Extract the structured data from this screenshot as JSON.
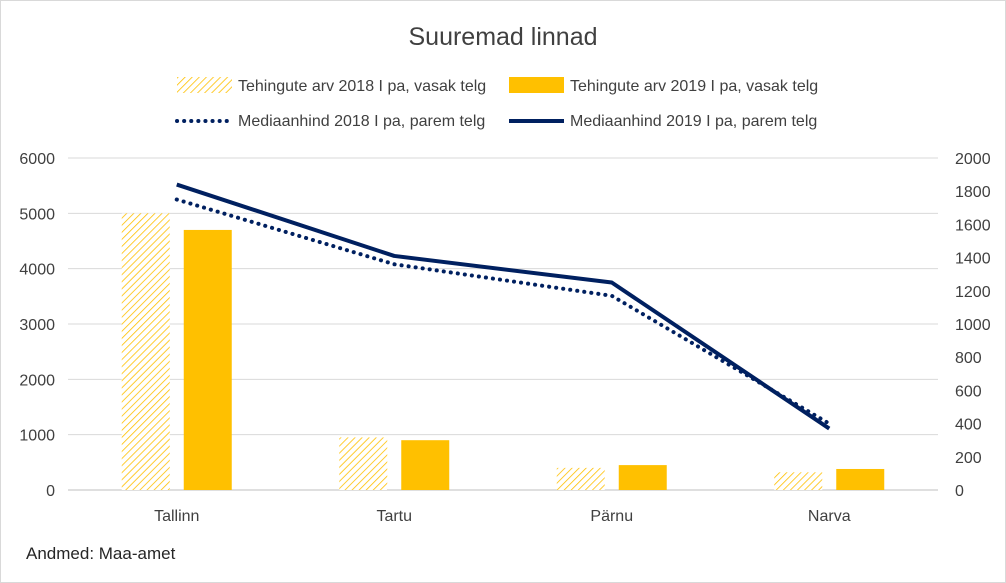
{
  "chart_data": {
    "type": "bar",
    "title": "Suuremad linnad",
    "categories": [
      "Tallinn",
      "Tartu",
      "Pärnu",
      "Narva"
    ],
    "series": [
      {
        "name": "Tehingute arv 2018 I pa, vasak telg",
        "kind": "bar",
        "axis": "left",
        "style": "hatched",
        "color": "#FFC000",
        "values": [
          5000,
          950,
          400,
          320
        ]
      },
      {
        "name": "Tehingute arv 2019 I pa, vasak telg",
        "kind": "bar",
        "axis": "left",
        "style": "solid",
        "color": "#FFC000",
        "values": [
          4700,
          900,
          450,
          380
        ]
      },
      {
        "name": "Mediaanhind 2018 I pa, parem telg",
        "kind": "line",
        "axis": "right",
        "style": "dotted",
        "color": "#002060",
        "values": [
          1750,
          1360,
          1170,
          400
        ]
      },
      {
        "name": "Mediaanhind 2019 I pa, parem telg",
        "kind": "line",
        "axis": "right",
        "style": "solid",
        "color": "#002060",
        "values": [
          1840,
          1410,
          1250,
          370
        ]
      }
    ],
    "left_axis": {
      "ylim": [
        0,
        6000
      ],
      "ticks": [
        "0",
        "1000",
        "2000",
        "3000",
        "4000",
        "5000",
        "6000"
      ]
    },
    "right_axis": {
      "ylim": [
        0,
        2000
      ],
      "ticks": [
        "0",
        "200",
        "400",
        "600",
        "800",
        "1000",
        "1200",
        "1400",
        "1600",
        "1800",
        "2000"
      ]
    },
    "grid": true,
    "legend_position": "top"
  },
  "source_note": "Andmed: Maa-amet"
}
